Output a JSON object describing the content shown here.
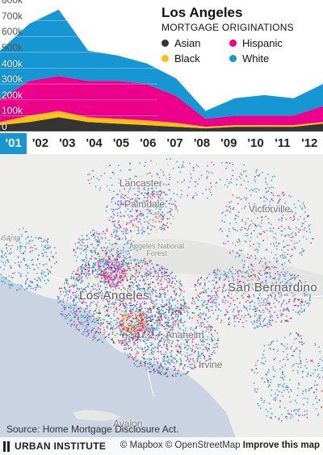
{
  "legend": {
    "title": "Los Angeles",
    "subtitle": "MORTGAGE ORIGINATIONS",
    "items": [
      {
        "label": "Asian",
        "color": "#353535"
      },
      {
        "label": "Hispanic",
        "color": "#ec008b"
      },
      {
        "label": "Black",
        "color": "#fdbf11"
      },
      {
        "label": "White",
        "color": "#1696d2"
      }
    ]
  },
  "chart_data": {
    "type": "area",
    "stacked": true,
    "x": [
      "2001",
      "2002",
      "2003",
      "2004",
      "2005",
      "2006",
      "2007",
      "2008",
      "2009",
      "2010",
      "2011",
      "2012"
    ],
    "ylim": [
      0,
      800000
    ],
    "yticks": [
      "0",
      "100k",
      "200k",
      "300k",
      "400k",
      "500k",
      "600k",
      "700k",
      "800k"
    ],
    "series": [
      {
        "name": "Asian",
        "color": "#353535",
        "values": [
          40000,
          60000,
          90000,
          60000,
          50000,
          40000,
          30000,
          20000,
          30000,
          30000,
          30000,
          50000
        ]
      },
      {
        "name": "Black",
        "color": "#fdbf11",
        "values": [
          20000,
          40000,
          40000,
          30000,
          30000,
          30000,
          25000,
          10000,
          10000,
          10000,
          10000,
          10000
        ]
      },
      {
        "name": "Hispanic",
        "color": "#ec008b",
        "values": [
          140000,
          220000,
          220000,
          230000,
          240000,
          230000,
          170000,
          50000,
          60000,
          60000,
          60000,
          100000
        ]
      },
      {
        "name": "White",
        "color": "#1696d2",
        "values": [
          310000,
          360000,
          420000,
          190000,
          160000,
          130000,
          110000,
          50000,
          110000,
          130000,
          110000,
          140000
        ]
      }
    ]
  },
  "years": [
    "'01",
    "'02",
    "'03",
    "'04",
    "'05",
    "'06",
    "'07",
    "'08",
    "'09",
    "'10",
    "'11",
    "'12"
  ],
  "selected_year_index": 0,
  "map": {
    "places": {
      "lancaster": "Lancaster",
      "palmdale": "Palmdale",
      "victorville": "Victorville",
      "forest": "Angeles National\nForest",
      "los_angeles": "Los Angeles",
      "san_bernardino": "San Bernardino",
      "anaheim": "Anaheim",
      "irvine": "Irvine",
      "avalon": "Avalon",
      "santa": "Santa"
    }
  },
  "source": "Source: Home Mortgage Disclosure Act.",
  "footer": {
    "logo": "URBAN INSTITUTE",
    "mapbox": "© Mapbox",
    "osm": "© OpenStreetMap",
    "improve": "Improve this map"
  }
}
